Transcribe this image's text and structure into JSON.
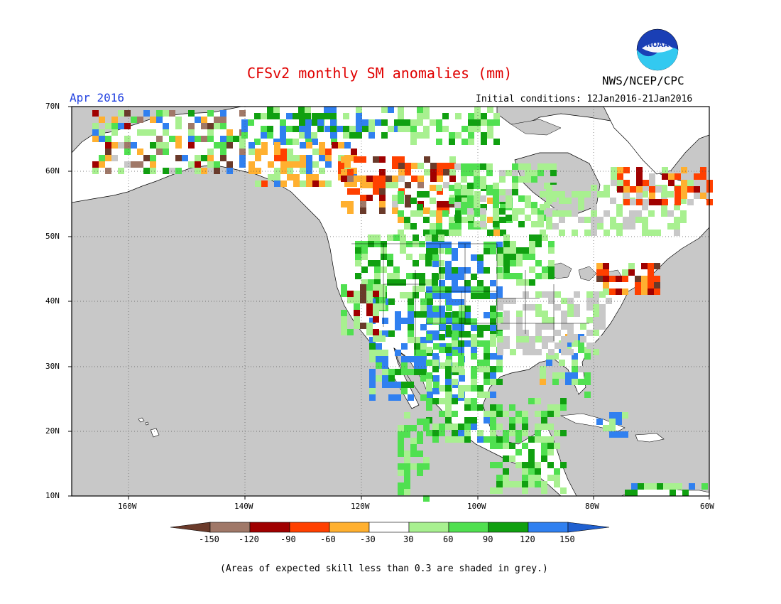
{
  "header": {
    "title": "CFSv2 monthly SM anomalies (mm)",
    "organization": "NWS/NCEP/CPC",
    "logo_text": "NOAA",
    "month": "Apr 2016",
    "initial_conditions": "Initial conditions: 12Jan2016-21Jan2016"
  },
  "map": {
    "lat_labels": [
      "70N",
      "60N",
      "50N",
      "40N",
      "30N",
      "20N",
      "10N"
    ],
    "lon_labels": [
      "160W",
      "140W",
      "120W",
      "100W",
      "80W",
      "60W"
    ],
    "ocean_color": "#c8c8c8",
    "land_color": "#ffffff"
  },
  "legend": {
    "tick_labels": [
      "-150",
      "-120",
      "-90",
      "-60",
      "-30",
      "30",
      "60",
      "90",
      "120",
      "150"
    ],
    "colors": [
      "#6a3a2a",
      "#a07868",
      "#a00000",
      "#ff4000",
      "#ffb030",
      "#ffffff",
      "#a8f090",
      "#50e050",
      "#10a010",
      "#3080f0",
      "#2060d0"
    ]
  },
  "footnote": "(Areas of expected skill less than 0.3 are shaded in grey.)"
}
